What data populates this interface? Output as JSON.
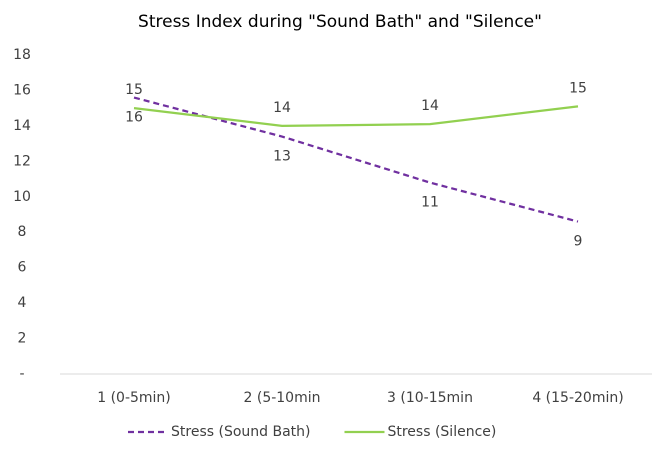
{
  "chart_data": {
    "type": "line",
    "title": "Stress Index during \"Sound Bath\" and \"Silence\"",
    "categories": [
      "1 (0-5min)",
      "2 (5-10min",
      "3 (10-15min",
      "4 (15-20min)"
    ],
    "series": [
      {
        "name": "Stress (Sound Bath)",
        "color": "#7030a0",
        "dashed": true,
        "values": [
          15.6,
          13.4,
          10.8,
          8.6
        ],
        "value_labels": [
          "16",
          "13",
          "11",
          "9"
        ],
        "label_side": "below"
      },
      {
        "name": "Stress (Silence)",
        "color": "#92d050",
        "dashed": false,
        "values": [
          15.0,
          14.0,
          14.1,
          15.1
        ],
        "value_labels": [
          "15",
          "14",
          "14",
          "15"
        ],
        "label_side": "above"
      }
    ],
    "ylim": [
      0,
      18
    ],
    "yticks": [
      {
        "value": 0,
        "label": "-"
      },
      2,
      4,
      6,
      8,
      10,
      12,
      14,
      16,
      18
    ],
    "grid": false,
    "legend": "bottom"
  }
}
